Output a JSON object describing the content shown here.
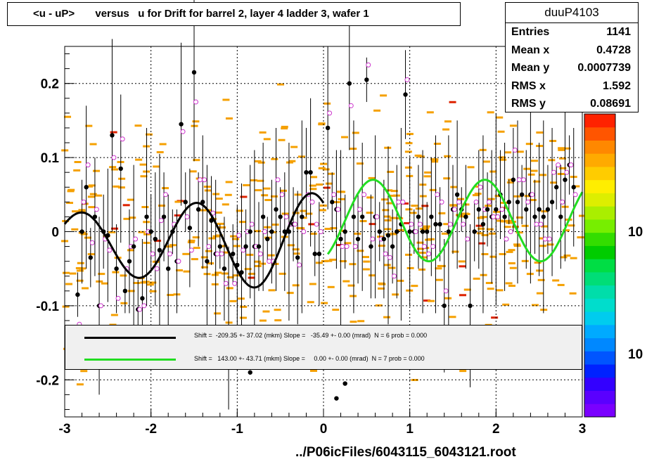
{
  "title": "<u - uP>       versus   u for Drift for barrel 2, layer 4 ladder 3, wafer 1",
  "stats": {
    "name": "duuP4103",
    "rows": [
      {
        "key": "Entries",
        "value": "1141"
      },
      {
        "key": "Mean x",
        "value": "0.4728"
      },
      {
        "key": "Mean y",
        "value": "0.0007739"
      },
      {
        "key": "RMS x",
        "value": "1.592"
      },
      {
        "key": "RMS y",
        "value": "0.08691"
      }
    ]
  },
  "fits": [
    {
      "color": "#000000",
      "text": "Shift =  -209.35 +- 37.02 (mkm) Slope =   -35.49 +- 0.00 (mrad)  N = 6 prob = 0.000"
    },
    {
      "color": "#22dd22",
      "text": "Shift =   143.00 +- 43.71 (mkm) Slope =     0.00 +- 0.00 (mrad)  N = 7 prob = 0.000"
    }
  ],
  "xlabel": "../P06icFiles/6043115_6043121.root",
  "colors": {
    "histogram": "#f5a000",
    "fit1": "#000000",
    "fit2": "#22dd22",
    "points_open": "#cc33cc"
  },
  "zaxis_labels": [
    "10",
    "10"
  ],
  "chart_data": {
    "type": "scatter",
    "xlim": [
      -3,
      3
    ],
    "ylim": [
      -0.25,
      0.25
    ],
    "xticks": [
      -3,
      -2,
      -1,
      0,
      1,
      2,
      3
    ],
    "yticks": [
      -0.2,
      -0.1,
      0,
      0.1,
      0.2
    ],
    "xtick_labels": [
      "-3",
      "-2",
      "-1",
      "0",
      "1",
      "2",
      "3"
    ],
    "ytick_labels": [
      "-0.2",
      "-0.1",
      "0",
      "0.1",
      "0.2"
    ],
    "grid": true,
    "profile_points": {
      "x": [
        -2.85,
        -2.8,
        -2.75,
        -2.7,
        -2.65,
        -2.6,
        -2.55,
        -2.5,
        -2.45,
        -2.4,
        -2.35,
        -2.3,
        -2.25,
        -2.2,
        -2.15,
        -2.1,
        -2.05,
        -2.0,
        -1.95,
        -1.9,
        -1.85,
        -1.8,
        -1.75,
        -1.7,
        -1.65,
        -1.6,
        -1.55,
        -1.5,
        -1.45,
        -1.4,
        -1.35,
        -1.3,
        -1.25,
        -1.2,
        -1.15,
        -1.1,
        -1.05,
        -1.0,
        -0.95,
        -0.9,
        -0.85,
        -0.8,
        -0.75,
        -0.7,
        -0.65,
        -0.6,
        -0.55,
        -0.5,
        -0.45,
        -0.4,
        -0.35,
        -0.3,
        -0.25,
        -0.2,
        -0.15,
        -0.1,
        -0.05,
        0.05,
        0.1,
        0.15,
        0.2,
        0.25,
        0.3,
        0.35,
        0.4,
        0.45,
        0.5,
        0.55,
        0.6,
        0.65,
        0.7,
        0.75,
        0.8,
        0.85,
        0.9,
        0.95,
        1.0,
        1.05,
        1.1,
        1.15,
        1.2,
        1.25,
        1.3,
        1.35,
        1.4,
        1.45,
        1.5,
        1.55,
        1.6,
        1.65,
        1.7,
        1.75,
        1.8,
        1.85,
        1.9,
        1.95,
        2.0,
        2.05,
        2.1,
        2.15,
        2.2,
        2.25,
        2.3,
        2.35,
        2.4,
        2.45,
        2.5,
        2.55,
        2.6,
        2.65,
        2.7,
        2.75,
        2.8,
        2.85,
        2.9
      ],
      "y": [
        -0.085,
        0.0,
        0.06,
        -0.035,
        0.02,
        -0.1,
        0.0,
        -0.005,
        0.13,
        -0.05,
        0.085,
        -0.08,
        -0.04,
        -0.02,
        -0.105,
        -0.09,
        0.02,
        0.0,
        -0.01,
        -0.025,
        0.02,
        -0.05,
        0.0,
        -0.04,
        0.145,
        0.04,
        0.005,
        0.215,
        0.03,
        0.04,
        -0.04,
        0.015,
        -0.03,
        -0.02,
        -0.05,
        -0.13,
        -0.03,
        -0.045,
        -0.055,
        -0.02,
        0.0,
        -0.02,
        -0.02,
        0.02,
        -0.01,
        0.0,
        0.03,
        0.02,
        0.0,
        0.0,
        0.01,
        -0.035,
        0.02,
        0.08,
        0.08,
        -0.03,
        -0.03,
        0.14,
        0.04,
        0.03,
        -0.01,
        0.0,
        0.2,
        0.02,
        -0.01,
        0.02,
        0.205,
        -0.02,
        0.02,
        0.0,
        -0.01,
        -0.005,
        -0.02,
        0.0,
        0.01,
        0.185,
        0.0,
        0.0,
        0.02,
        0.0,
        0.0,
        0.02,
        0.01,
        0.01,
        -0.1,
        0.0,
        0.03,
        0.05,
        0.03,
        0.02,
        -0.1,
        0.0,
        0.03,
        0.01,
        0.03,
        0.02,
        0.03,
        0.05,
        0.02,
        0.04,
        0.07,
        0.04,
        0.05,
        0.03,
        0.05,
        0.02,
        0.03,
        0.02,
        0.03,
        0.04,
        0.06,
        0.02,
        0.07,
        0.09,
        0.06
      ],
      "low_points_x": [
        -0.85,
        0.15,
        0.25
      ],
      "low_points_y": [
        -0.19,
        -0.225,
        -0.205
      ]
    },
    "series": [
      {
        "name": "fit1",
        "x_range": [
          -3.0,
          0.0
        ]
      },
      {
        "name": "fit2",
        "x_range": [
          0.05,
          3.0
        ]
      }
    ]
  }
}
